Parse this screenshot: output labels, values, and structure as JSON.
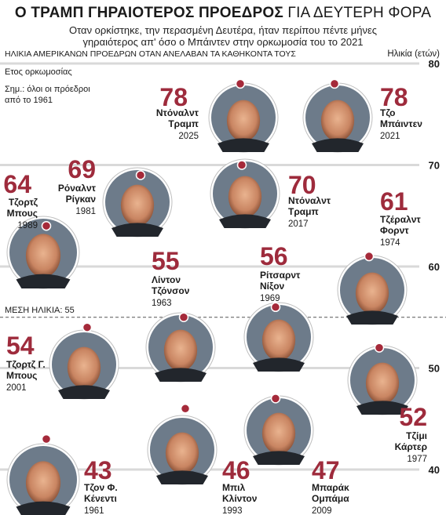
{
  "header": {
    "title_bold": "Ο ΤΡΑΜΠ ΓΗΡΑΙΟΤΕΡΟΣ ΠΡΟΕΔΡΟΣ",
    "title_rest": "ΓΙΑ ΔΕΥΤΕΡΗ ΦΟΡΑ",
    "subtitle_line1": "Οταν ορκίστηκε, την περασμένη Δευτέρα, ήταν περίπου πέντε μήνες",
    "subtitle_line2": "γηραιότερος απ' όσο ο Μπάιντεν στην ορκωμοσία του το 2021"
  },
  "colors": {
    "accent": "#9e2b3c",
    "grid": "#d9d9d9",
    "dot_fill": "#a52a3a",
    "text": "#1a1a1a"
  },
  "chart_data": {
    "type": "scatter",
    "ylabel": "Ηλικία (ετών)",
    "xlabel": "ΗΛΙΚΙΑ ΑΜΕΡΙΚΑΝΩΝ ΠΡΟΕΔΡΩΝ ΟΤΑΝ ΑΝΕΛΑΒΑΝ ΤΑ ΚΑΘΗΚΟΝΤΑ ΤΟΥΣ",
    "ylim": [
      40,
      80
    ],
    "yticks": [
      40,
      50,
      60,
      70,
      80
    ],
    "legend_year_label": "Ετος ορκωμοσίας",
    "note": "Σημ.: όλοι οι πρόεδροι από το 1961",
    "mean_label": "ΜΕΣΗ ΗΛΙΚΙΑ: 55",
    "mean": 55,
    "points": [
      {
        "name": "Ντόναλντ Τραμπ",
        "year": "2025",
        "age": 78
      },
      {
        "name": "Τζο Μπάιντεν",
        "year": "2021",
        "age": 78
      },
      {
        "name": "Ρόναλντ Ρίγκαν",
        "year": "1981",
        "age": 69
      },
      {
        "name": "Ντόναλντ Τραμπ",
        "year": "2017",
        "age": 70
      },
      {
        "name": "Τζορτζ Μπους",
        "year": "1989",
        "age": 64
      },
      {
        "name": "Τζέραλντ Φορντ",
        "year": "1974",
        "age": 61
      },
      {
        "name": "Λίντον Τζόνσον",
        "year": "1963",
        "age": 55
      },
      {
        "name": "Ρίτσαρντ Νίξον",
        "year": "1969",
        "age": 56
      },
      {
        "name": "Τζορτζ Γ. Μπους",
        "year": "2001",
        "age": 54
      },
      {
        "name": "Τζίμι Κάρτερ",
        "year": "1977",
        "age": 52
      },
      {
        "name": "Τζον Φ. Κένεντι",
        "year": "1961",
        "age": 43
      },
      {
        "name": "Μπιλ Κλίντον",
        "year": "1993",
        "age": 46
      },
      {
        "name": "Μπαράκ Ομπάμα",
        "year": "2009",
        "age": 47
      }
    ]
  }
}
